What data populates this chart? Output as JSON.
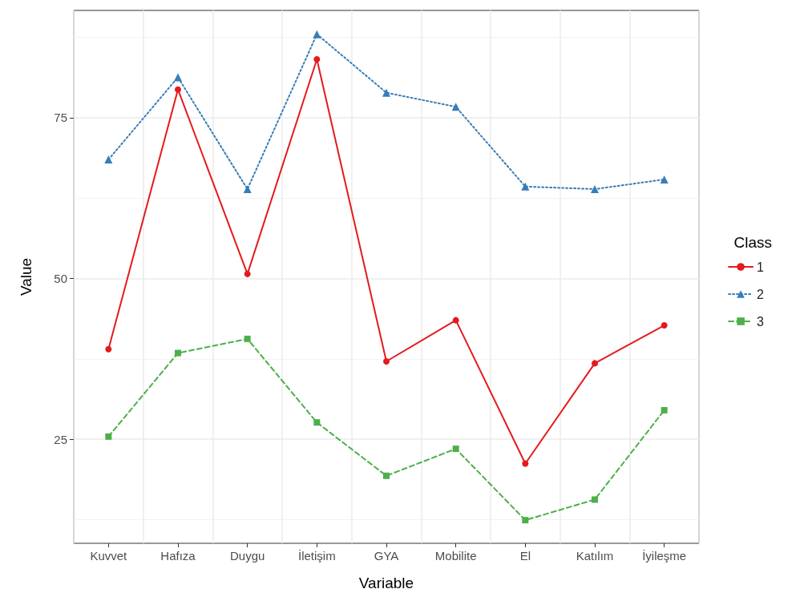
{
  "chart_data": {
    "type": "line",
    "xlabel": "Variable",
    "ylabel": "Value",
    "legend_title": "Class",
    "categories": [
      "Kuvvet",
      "Hafıza",
      "Duygu",
      "İletişim",
      "GYA",
      "Mobilite",
      "El",
      "Katılım",
      "İyileşme"
    ],
    "series": [
      {
        "name": "1",
        "color": "#e41a1c",
        "marker": "circle",
        "line_style": "solid",
        "values": [
          39.0,
          79.4,
          50.7,
          84.1,
          37.1,
          43.5,
          21.2,
          36.8,
          42.7
        ]
      },
      {
        "name": "2",
        "color": "#377eb8",
        "marker": "triangle",
        "line_style": "dotted",
        "values": [
          68.5,
          81.3,
          63.9,
          88.0,
          78.9,
          76.7,
          64.3,
          63.9,
          65.4
        ]
      },
      {
        "name": "3",
        "color": "#4daf4a",
        "marker": "square",
        "line_style": "dashed",
        "values": [
          25.4,
          38.4,
          40.6,
          27.6,
          19.3,
          23.5,
          12.4,
          15.6,
          29.5
        ]
      }
    ],
    "ylim": [
      8.8,
      91.7
    ],
    "yticks": [
      25,
      50,
      75
    ],
    "grid": true,
    "legend": "right"
  }
}
